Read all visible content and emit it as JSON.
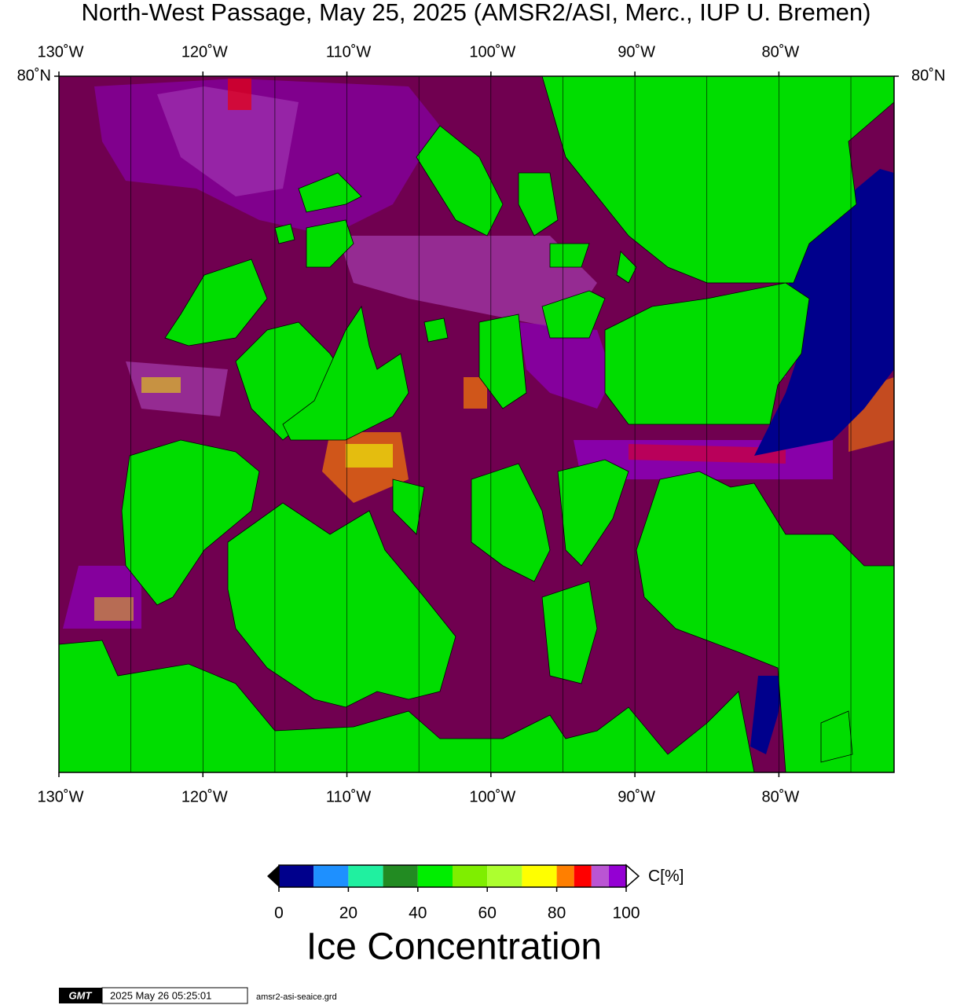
{
  "title": "North-West Passage, May 25, 2025 (AMSR2/ASI, Merc., IUP U. Bremen)",
  "map": {
    "lonlim": [
      -130,
      -72
    ],
    "lonticks": [
      {
        "value": -130,
        "label": "130˚W"
      },
      {
        "value": -120,
        "label": "120˚W"
      },
      {
        "value": -110,
        "label": "110˚W"
      },
      {
        "value": -100,
        "label": "100˚W"
      },
      {
        "value": -90,
        "label": "90˚W"
      },
      {
        "value": -80,
        "label": "80˚W"
      }
    ],
    "lon_gridlines": [
      -125,
      -120,
      -115,
      -110,
      -105,
      -100,
      -95,
      -90,
      -85,
      -80,
      -75
    ],
    "latlim": [
      67,
      80
    ],
    "latticks": [
      {
        "value": 80,
        "label": "80˚N"
      }
    ],
    "land_color": "#00dd00",
    "ocean_color": "#700050"
  },
  "colorbar": {
    "bounds": [
      0,
      10,
      20,
      30,
      40,
      50,
      60,
      70,
      80,
      85,
      90,
      95,
      100
    ],
    "colors": [
      "#00008c",
      "#1e90ff",
      "#20f0a0",
      "#228b22",
      "#00ee00",
      "#7fee00",
      "#adff2f",
      "#ffff00",
      "#ff7f00",
      "#ff0000",
      "#ba55d3",
      "#9400d3"
    ],
    "ticks": [
      0,
      20,
      40,
      60,
      80,
      100
    ],
    "unit": "C[%]",
    "title": "Ice Concentration"
  },
  "footer": {
    "logo": "GMT",
    "timestamp": "2025 May 26 05:25:01",
    "file": "amsr2-asi-seaice.grd"
  }
}
